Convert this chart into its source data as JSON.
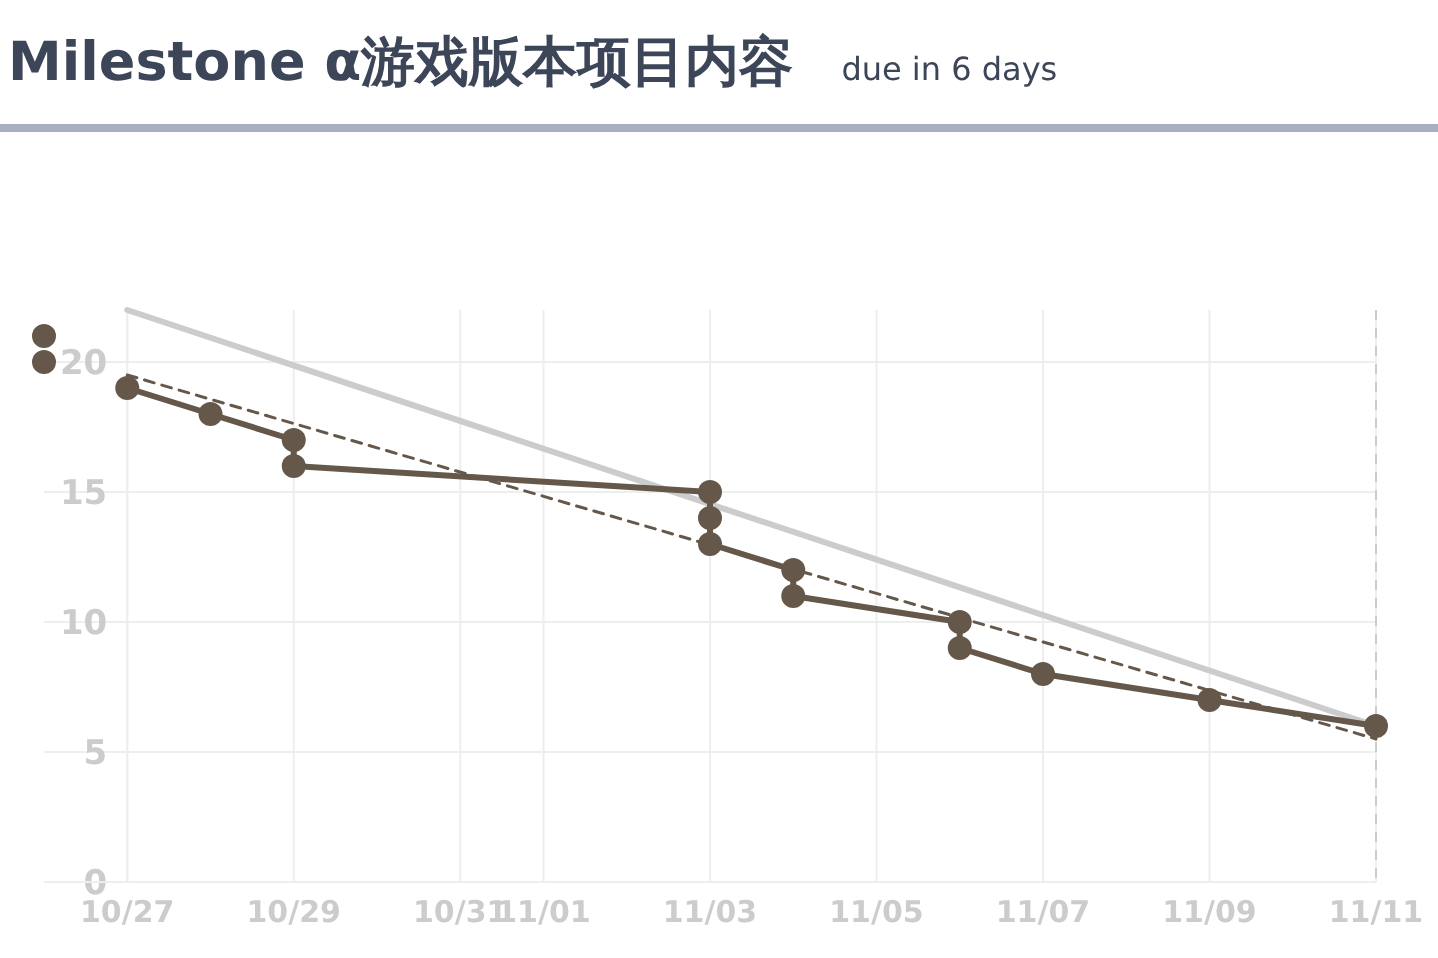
{
  "chart_data": {
    "type": "line",
    "title": "Milestone α游戏版本项目内容",
    "subtitle": "due in 6 days",
    "xlim": [
      "--10-26",
      "--11-11"
    ],
    "ylim": [
      0,
      22
    ],
    "xticks": [
      {
        "value": "--10-27",
        "label": "10/27"
      },
      {
        "value": "--10-29",
        "label": "10/29"
      },
      {
        "value": "--10-31",
        "label": "10/31"
      },
      {
        "value": "--11-01",
        "label": "11/01"
      },
      {
        "value": "--11-03",
        "label": "11/03"
      },
      {
        "value": "--11-05",
        "label": "11/05"
      },
      {
        "value": "--11-07",
        "label": "11/07"
      },
      {
        "value": "--11-09",
        "label": "11/09"
      },
      {
        "value": "--11-11",
        "label": "11/11"
      }
    ],
    "yticks": [
      0,
      5,
      10,
      15,
      20
    ],
    "grid": true,
    "ref_lines": [
      {
        "axis": "x",
        "value": "--11-11",
        "label": null,
        "color": "#cccccc",
        "line_style": "dashed"
      }
    ],
    "series": [
      {
        "color": "#cccccc",
        "marker": "none",
        "line_style": "solid",
        "x": [
          "--10-27",
          "--11-11"
        ],
        "values": [
          22,
          6
        ]
      },
      {
        "color": "#65584a",
        "marker": "none",
        "line_style": "dashed",
        "x": [
          "--10-27",
          "--11-11"
        ],
        "values": [
          19.5,
          5.5
        ]
      },
      {
        "type": "scatter",
        "color": "#65584a",
        "marker": "circle",
        "x": [
          "--10-26",
          "--10-26"
        ],
        "values": [
          21,
          20
        ]
      },
      {
        "color": "#65584a",
        "marker": "circle",
        "line_style": "solid",
        "x": [
          "--10-27",
          "--10-28",
          "--10-29",
          "--10-29",
          "--11-03",
          "--11-03",
          "--11-03",
          "--11-04",
          "--11-04",
          "--11-06",
          "--11-06",
          "--11-07",
          "--11-09",
          "--11-11"
        ],
        "values": [
          19,
          18,
          17,
          16,
          15,
          14,
          13,
          12,
          11,
          10,
          9,
          8,
          7,
          6
        ]
      }
    ]
  }
}
